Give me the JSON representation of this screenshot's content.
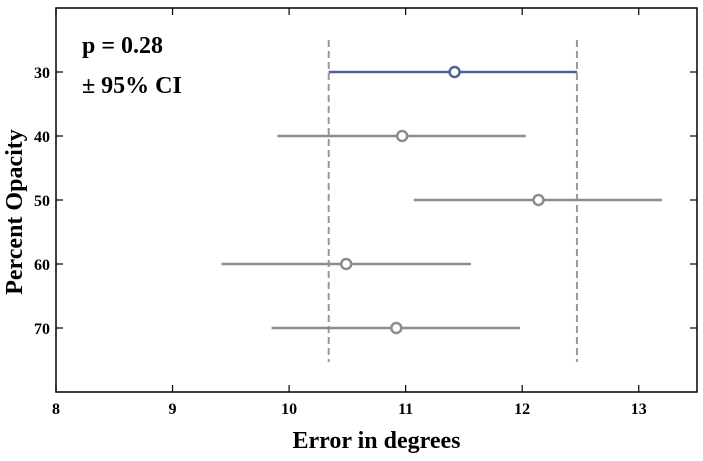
{
  "chart_data": {
    "type": "scatter",
    "xlabel": "Error in degrees",
    "ylabel": "Percent Opacity",
    "xlim": [
      8,
      13.5
    ],
    "ylim": [
      20,
      80
    ],
    "y_inverted": true,
    "x_ticks": [
      8,
      9,
      10,
      11,
      12,
      13
    ],
    "y_ticks": [
      30,
      40,
      50,
      60,
      70
    ],
    "grid": false,
    "annotations": [
      "p = 0.28",
      "± 95% CI"
    ],
    "reference_lines": {
      "style": "dashed",
      "color": "#999999",
      "x": [
        10.34,
        12.47
      ]
    },
    "series": [
      {
        "points": [
          {
            "y": 30,
            "x": 11.42,
            "ci_low": 10.34,
            "ci_high": 12.47,
            "color": "#4a6496"
          },
          {
            "y": 40,
            "x": 10.97,
            "ci_low": 9.9,
            "ci_high": 12.03,
            "color": "#8c8c8c"
          },
          {
            "y": 50,
            "x": 12.14,
            "ci_low": 11.07,
            "ci_high": 13.2,
            "color": "#8c8c8c"
          },
          {
            "y": 60,
            "x": 10.49,
            "ci_low": 9.42,
            "ci_high": 11.56,
            "color": "#8c8c8c"
          },
          {
            "y": 70,
            "x": 10.92,
            "ci_low": 9.85,
            "ci_high": 11.98,
            "color": "#8c8c8c"
          }
        ]
      }
    ]
  }
}
